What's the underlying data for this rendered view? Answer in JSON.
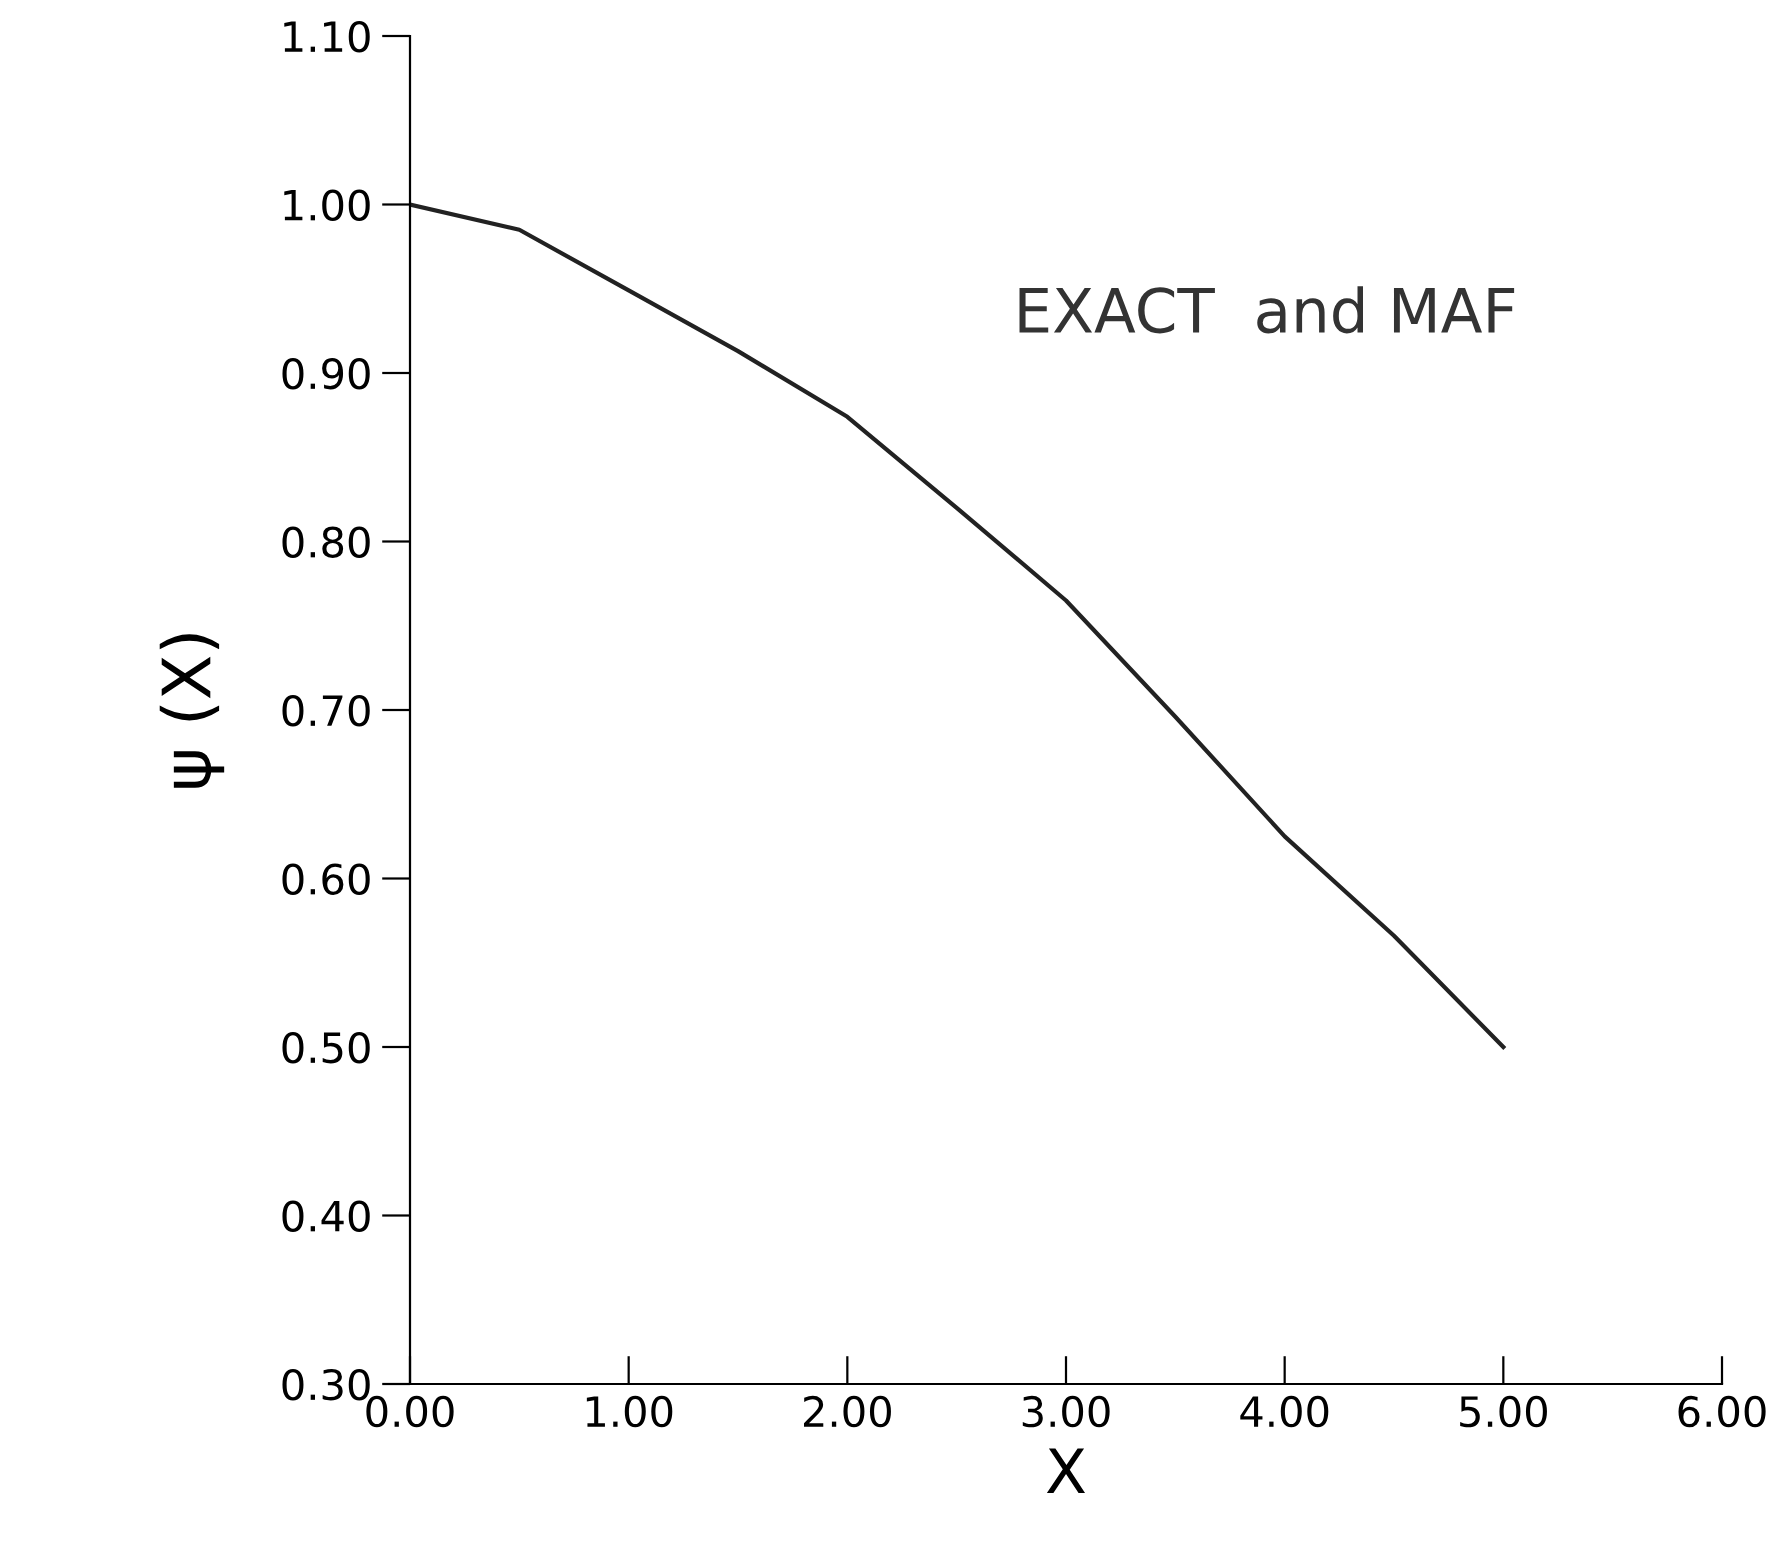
{
  "chart_data": {
    "type": "line",
    "xlabel": "X",
    "ylabel": "ψ (X)",
    "annotations": [
      "EXACT  and MAF"
    ],
    "x": [
      0,
      0.5,
      1,
      1.5,
      2,
      2.5,
      3,
      3.5,
      4,
      4.5,
      5
    ],
    "series": [
      {
        "color": "#222222",
        "values": [
          1.0,
          0.985,
          0.949,
          0.913,
          0.874,
          0.82,
          0.765,
          0.696,
          0.625,
          0.566,
          0.5
        ]
      }
    ],
    "xlim": [
      0,
      6
    ],
    "xticks": [
      {
        "value": 0,
        "label": "0.00"
      },
      {
        "value": 1,
        "label": "1.00"
      },
      {
        "value": 2,
        "label": "2.00"
      },
      {
        "value": 3,
        "label": "3.00"
      },
      {
        "value": 4,
        "label": "4.00"
      },
      {
        "value": 5,
        "label": "5.00"
      },
      {
        "value": 6,
        "label": "6.00"
      }
    ],
    "ylim": [
      0.3,
      1.1
    ],
    "yticks": [
      {
        "value": 0.3,
        "label": "0.30"
      },
      {
        "value": 0.4,
        "label": "0.40"
      },
      {
        "value": 0.5,
        "label": "0.50"
      },
      {
        "value": 0.6,
        "label": "0.60"
      },
      {
        "value": 0.7,
        "label": "0.70"
      },
      {
        "value": 0.8,
        "label": "0.80"
      },
      {
        "value": 0.9,
        "label": "0.90"
      },
      {
        "value": 1.0,
        "label": "1.00"
      },
      {
        "value": 1.1,
        "label": "1.10"
      }
    ],
    "grid": false,
    "legend": false,
    "marker": "none",
    "line_style": "solid"
  }
}
